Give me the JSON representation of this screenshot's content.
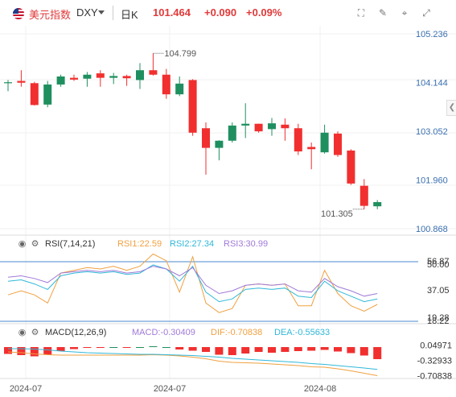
{
  "header": {
    "name": "美元指数",
    "symbol": "DXY",
    "period": "日K",
    "price": "101.464",
    "change": "+0.090",
    "change_pct": "+0.09%"
  },
  "toolbar": {
    "icons": [
      "chart-settings-icon",
      "pencil-icon",
      "crosshair-icon",
      "fullscreen-icon"
    ]
  },
  "colors": {
    "up": "#1f8f5f",
    "down": "#f12f2f",
    "rsi1": "#f0a040",
    "rsi2": "#30b8d8",
    "rsi3": "#a07ad8",
    "dif": "#f0a040",
    "dea": "#30b8d8"
  },
  "chart_data": [
    {
      "type": "candlestick",
      "title": "DXY 日K",
      "y_ticks": [
        105.236,
        104.144,
        103.052,
        101.96,
        100.868
      ],
      "ylim": [
        100.868,
        105.236
      ],
      "x_ticks": [
        "2024-07",
        "2024-07",
        "2024-08"
      ],
      "annotations": [
        {
          "label": "104.799",
          "value": 104.799,
          "index": 11,
          "side": "right"
        },
        {
          "label": "101.305",
          "value": 101.305,
          "index": 27,
          "side": "left"
        }
      ],
      "candles": [
        {
          "o": 104.13,
          "h": 104.2,
          "l": 103.95,
          "c": 104.15
        },
        {
          "o": 104.18,
          "h": 104.42,
          "l": 104.05,
          "c": 104.14
        },
        {
          "o": 104.13,
          "h": 104.16,
          "l": 103.63,
          "c": 103.64
        },
        {
          "o": 103.65,
          "h": 104.18,
          "l": 103.59,
          "c": 104.1
        },
        {
          "o": 104.1,
          "h": 104.32,
          "l": 104.05,
          "c": 104.28
        },
        {
          "o": 104.25,
          "h": 104.32,
          "l": 104.18,
          "c": 104.21
        },
        {
          "o": 104.23,
          "h": 104.38,
          "l": 104.05,
          "c": 104.32
        },
        {
          "o": 104.35,
          "h": 104.42,
          "l": 104.05,
          "c": 104.25
        },
        {
          "o": 104.25,
          "h": 104.36,
          "l": 104.11,
          "c": 104.29
        },
        {
          "o": 104.29,
          "h": 104.32,
          "l": 104.07,
          "c": 104.24
        },
        {
          "o": 104.2,
          "h": 104.58,
          "l": 104.0,
          "c": 104.42
        },
        {
          "o": 104.42,
          "h": 104.8,
          "l": 104.3,
          "c": 104.32
        },
        {
          "o": 104.32,
          "h": 104.45,
          "l": 103.78,
          "c": 103.88
        },
        {
          "o": 103.88,
          "h": 104.28,
          "l": 103.84,
          "c": 104.12
        },
        {
          "o": 104.2,
          "h": 104.22,
          "l": 102.95,
          "c": 103.02
        },
        {
          "o": 103.12,
          "h": 103.25,
          "l": 102.08,
          "c": 102.68
        },
        {
          "o": 102.68,
          "h": 102.85,
          "l": 102.4,
          "c": 102.84
        },
        {
          "o": 102.84,
          "h": 103.25,
          "l": 102.8,
          "c": 103.18
        },
        {
          "o": 103.18,
          "h": 103.68,
          "l": 102.9,
          "c": 103.22
        },
        {
          "o": 103.22,
          "h": 103.22,
          "l": 103.02,
          "c": 103.05
        },
        {
          "o": 103.1,
          "h": 103.35,
          "l": 102.95,
          "c": 103.23
        },
        {
          "o": 103.2,
          "h": 103.34,
          "l": 102.84,
          "c": 103.12
        },
        {
          "o": 103.12,
          "h": 103.22,
          "l": 102.52,
          "c": 102.6
        },
        {
          "o": 102.7,
          "h": 102.8,
          "l": 102.2,
          "c": 102.65
        },
        {
          "o": 102.58,
          "h": 103.2,
          "l": 102.55,
          "c": 103.02
        },
        {
          "o": 103.0,
          "h": 103.05,
          "l": 102.48,
          "c": 102.52
        },
        {
          "o": 102.62,
          "h": 102.65,
          "l": 101.85,
          "c": 101.88
        },
        {
          "o": 101.83,
          "h": 101.98,
          "l": 101.3,
          "c": 101.38
        },
        {
          "o": 101.37,
          "h": 101.51,
          "l": 101.305,
          "c": 101.464
        }
      ]
    },
    {
      "type": "line",
      "title": "RSI(7,14,21)",
      "y_ticks": [
        56.87,
        50.0,
        37.05,
        19.28,
        18.22
      ],
      "ylim": [
        10,
        62
      ],
      "series": [
        {
          "name": "RSI1",
          "last": "22.59",
          "values": [
            30,
            33,
            30,
            24,
            46,
            48,
            50,
            49,
            51,
            48,
            51,
            60,
            55,
            32,
            58,
            24,
            17,
            20,
            37,
            38,
            37,
            38,
            22,
            22,
            48,
            31,
            22,
            18,
            23
          ]
        },
        {
          "name": "RSI2",
          "last": "27.34",
          "values": [
            40,
            41,
            38,
            34,
            44,
            46,
            47,
            46,
            47,
            45,
            46,
            52,
            49,
            40,
            51,
            32,
            25,
            27,
            34,
            35,
            34,
            35,
            29,
            28,
            40,
            33,
            29,
            25,
            27
          ]
        },
        {
          "name": "RSI3",
          "last": "30.99",
          "values": [
            43,
            44,
            42,
            39,
            46,
            47,
            48,
            47,
            48,
            46,
            47,
            51,
            49,
            44,
            50,
            37,
            31,
            33,
            37,
            38,
            37,
            38,
            33,
            32,
            42,
            36,
            33,
            29,
            31
          ]
        }
      ]
    },
    {
      "type": "bar",
      "title": "MACD(12,26,9)",
      "y_ticks": [
        0.04971,
        -0.32933,
        -0.70838
      ],
      "ylim": [
        -0.78,
        0.1
      ],
      "macd_label": "MACD:",
      "macd_last": "-0.30409",
      "dif_label": "DIF:",
      "dif_last": "-0.70838",
      "dea_label": "DEA:",
      "dea_last": "-0.55633",
      "histogram": [
        -0.17,
        -0.2,
        -0.23,
        -0.19,
        -0.1,
        -0.05,
        -0.01,
        -0.01,
        0.0,
        -0.02,
        0.0,
        0.02,
        0.0,
        -0.06,
        -0.09,
        -0.12,
        -0.19,
        -0.2,
        -0.16,
        -0.12,
        -0.14,
        -0.12,
        -0.1,
        -0.09,
        -0.07,
        -0.11,
        -0.15,
        -0.21,
        -0.3
      ],
      "dif": [
        -0.12,
        -0.14,
        -0.17,
        -0.19,
        -0.2,
        -0.2,
        -0.2,
        -0.2,
        -0.2,
        -0.2,
        -0.2,
        -0.19,
        -0.2,
        -0.22,
        -0.25,
        -0.29,
        -0.35,
        -0.38,
        -0.39,
        -0.4,
        -0.42,
        -0.44,
        -0.46,
        -0.49,
        -0.5,
        -0.54,
        -0.59,
        -0.65,
        -0.71
      ],
      "dea": [
        -0.04,
        -0.04,
        -0.05,
        -0.07,
        -0.1,
        -0.12,
        -0.14,
        -0.15,
        -0.16,
        -0.17,
        -0.18,
        -0.18,
        -0.19,
        -0.2,
        -0.21,
        -0.23,
        -0.25,
        -0.28,
        -0.3,
        -0.32,
        -0.34,
        -0.36,
        -0.38,
        -0.41,
        -0.43,
        -0.46,
        -0.49,
        -0.52,
        -0.556
      ]
    }
  ]
}
